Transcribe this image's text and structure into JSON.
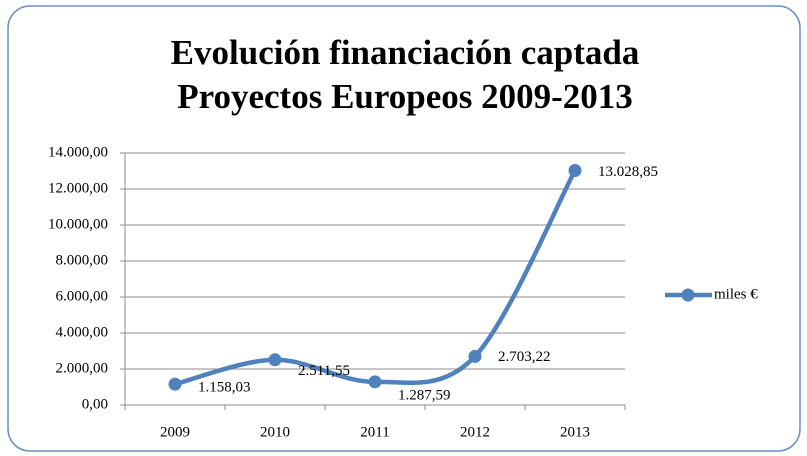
{
  "chart_data": {
    "type": "line",
    "title_lines": [
      "Evolución financiación captada",
      "Proyectos Europeos 2009-2013"
    ],
    "categories": [
      "2009",
      "2010",
      "2011",
      "2012",
      "2013"
    ],
    "series": [
      {
        "name": "miles €",
        "color": "#4f81bd",
        "values": [
          1158.03,
          2511.55,
          1287.59,
          2703.22,
          13028.85
        ],
        "value_labels": [
          "1.158,03",
          "2.511,55",
          "1.287,59",
          "2.703,22",
          "13.028,85"
        ]
      }
    ],
    "ylim": [
      0,
      14000
    ],
    "yticks": [
      {
        "value": 0,
        "label": "0,00"
      },
      {
        "value": 2000,
        "label": "2.000,00"
      },
      {
        "value": 4000,
        "label": "4.000,00"
      },
      {
        "value": 6000,
        "label": "6.000,00"
      },
      {
        "value": 8000,
        "label": "8.000,00"
      },
      {
        "value": 10000,
        "label": "10.000,00"
      },
      {
        "value": 12000,
        "label": "12.000,00"
      },
      {
        "value": 14000,
        "label": "14.000,00"
      }
    ],
    "grid": true,
    "legend": "right",
    "smooth": true
  }
}
